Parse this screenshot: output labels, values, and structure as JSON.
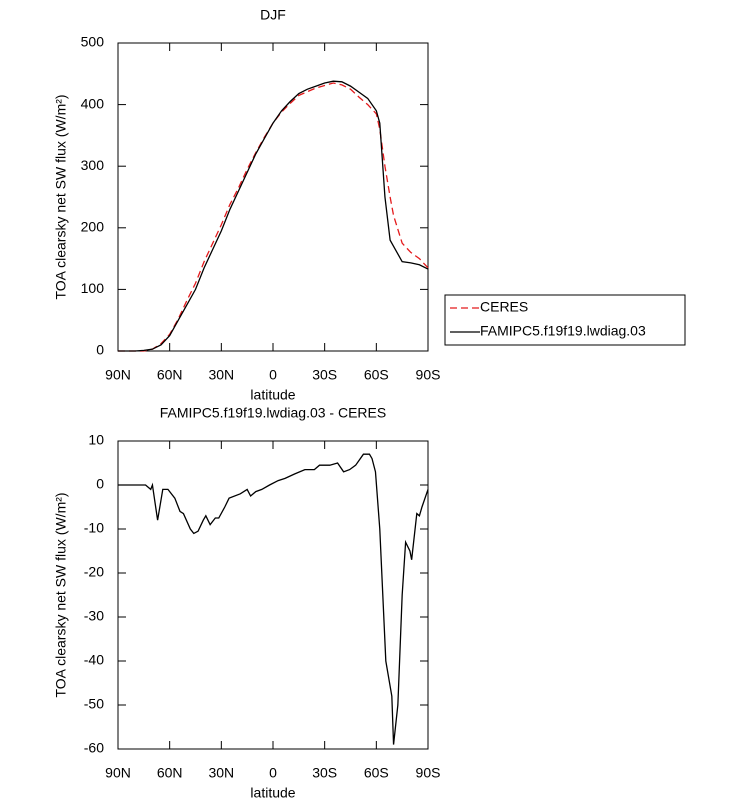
{
  "chart_data": [
    {
      "type": "line",
      "title": "DJF",
      "xlabel": "latitude",
      "ylabel": "TOA clearsky net SW flux (W/m²)",
      "x": [
        90,
        80,
        75,
        70,
        65,
        60,
        55,
        50,
        45,
        40,
        35,
        30,
        25,
        20,
        15,
        10,
        5,
        0,
        -5,
        -10,
        -15,
        -20,
        -25,
        -30,
        -35,
        -40,
        -45,
        -50,
        -55,
        -60,
        -62,
        -65,
        -68,
        -70,
        -75,
        -80,
        -85,
        -90
      ],
      "series": [
        {
          "name": "CERES",
          "color": "#e41a1c",
          "dash": true,
          "values": [
            0,
            0,
            0,
            3,
            12,
            27,
            52,
            82,
            110,
            145,
            175,
            205,
            238,
            265,
            295,
            322,
            347,
            370,
            388,
            402,
            415,
            421,
            427,
            431,
            435,
            432,
            425,
            412,
            400,
            385,
            360,
            300,
            250,
            220,
            175,
            160,
            150,
            135
          ]
        },
        {
          "name": "FAMIPC5.f19f19.lwdiag.03",
          "color": "#000000",
          "dash": false,
          "values": [
            0,
            0,
            1,
            3,
            10,
            25,
            50,
            75,
            100,
            135,
            165,
            195,
            230,
            260,
            290,
            320,
            345,
            370,
            390,
            405,
            418,
            425,
            430,
            435,
            438,
            437,
            430,
            420,
            410,
            390,
            370,
            250,
            180,
            170,
            145,
            143,
            140,
            133
          ]
        }
      ],
      "xlim": [
        90,
        -90
      ],
      "xticks": [
        {
          "value": 90,
          "label": "90N"
        },
        {
          "value": 60,
          "label": "60N"
        },
        {
          "value": 30,
          "label": "30N"
        },
        0,
        {
          "value": -30,
          "label": "30S"
        },
        {
          "value": -60,
          "label": "60S"
        },
        {
          "value": -90,
          "label": "90S"
        }
      ],
      "ylim": [
        0,
        500
      ],
      "yticks": [
        0,
        100,
        200,
        300,
        400,
        500
      ],
      "legend": "right-outside"
    },
    {
      "type": "line",
      "title": "FAMIPC5.f19f19.lwdiag.03 - CERES",
      "xlabel": "latitude",
      "ylabel": "TOA clearsky net SW flux (W/m²)",
      "x": [
        90,
        74,
        71,
        70,
        67,
        64,
        61,
        57,
        54,
        52,
        48,
        46,
        43.5,
        40.5,
        39,
        36.5,
        33.5,
        31.5,
        28,
        25.5,
        19,
        15,
        13,
        10,
        6.5,
        2,
        -3,
        -7,
        -12.5,
        -18.5,
        -24,
        -27,
        -33,
        -37.5,
        -41,
        -44.5,
        -48,
        -52.5,
        -56,
        -57.5,
        -59.5,
        -62,
        -65.5,
        -69,
        -70,
        -72.5,
        -75,
        -77,
        -79.5,
        -80.5,
        -83.5,
        -85,
        -86.5,
        -90
      ],
      "series": [
        {
          "color": "#000000",
          "dash": false,
          "values": [
            0,
            0,
            -1,
            0,
            -8,
            -1,
            -1,
            -3,
            -6,
            -6.5,
            -10,
            -11,
            -10.5,
            -8,
            -7,
            -9,
            -7.5,
            -7.5,
            -5,
            -3,
            -2,
            -1,
            -2.5,
            -1.5,
            -1,
            0,
            1,
            1.5,
            2.5,
            3.5,
            3.5,
            4.5,
            4.5,
            5,
            3,
            3.5,
            4.5,
            7,
            7,
            6,
            3,
            -10,
            -40,
            -48,
            -59,
            -50,
            -25,
            -13,
            -15,
            -17,
            -6.5,
            -7,
            -5,
            -1
          ]
        }
      ],
      "xlim": [
        90,
        -90
      ],
      "xticks": [
        {
          "value": 90,
          "label": "90N"
        },
        {
          "value": 60,
          "label": "60N"
        },
        {
          "value": 30,
          "label": "30N"
        },
        0,
        {
          "value": -30,
          "label": "30S"
        },
        {
          "value": -60,
          "label": "60S"
        },
        {
          "value": -90,
          "label": "90S"
        }
      ],
      "ylim": [
        -60,
        10
      ],
      "yticks": [
        -60,
        -50,
        -40,
        -30,
        -20,
        -10,
        0,
        10
      ]
    }
  ]
}
